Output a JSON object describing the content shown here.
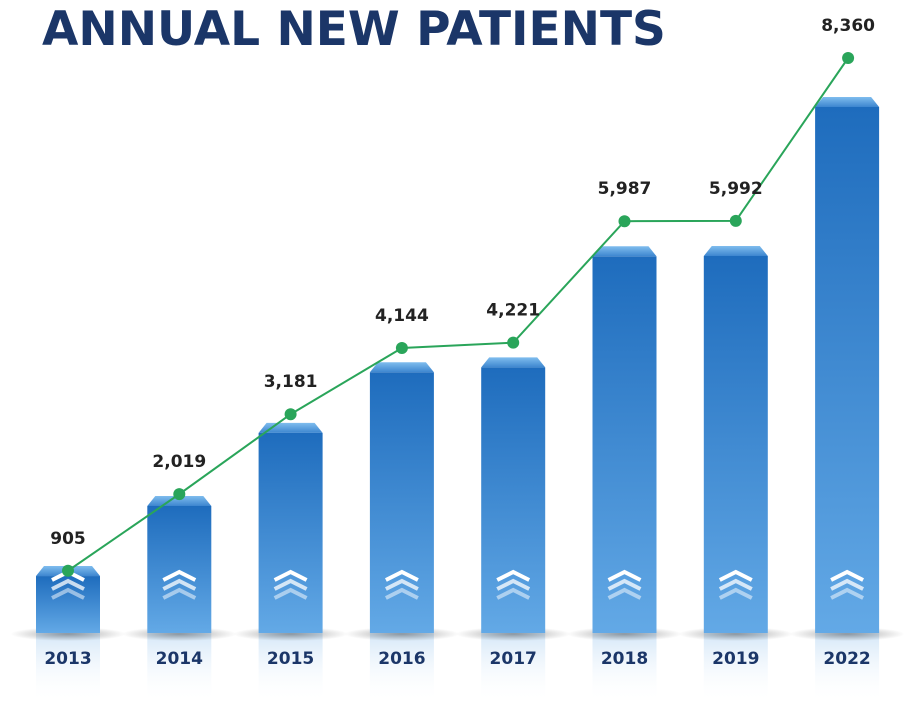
{
  "header": {
    "title": "ANNUAL NEW PATIENTS"
  },
  "colors": {
    "title": "#1b3668",
    "bar_top": "#1e6cbd",
    "bar_bottom": "#63a9e6",
    "line": "#2aa55a",
    "value_text": "#222222",
    "year_text": "#1b3668"
  },
  "chart_data": {
    "type": "bar",
    "title": "ANNUAL NEW PATIENTS",
    "xlabel": "",
    "ylabel": "",
    "categories": [
      "2013",
      "2014",
      "2015",
      "2016",
      "2017",
      "2018",
      "2019",
      "2022"
    ],
    "series": [
      {
        "values": [
          905,
          2019,
          3181,
          4144,
          4221,
          5987,
          5992,
          8360
        ]
      }
    ],
    "value_labels": [
      "905",
      "2,019",
      "3,181",
      "4,144",
      "4,221",
      "5,987",
      "5,992",
      "8,360"
    ],
    "overlay": "line-with-markers",
    "grid": false,
    "legend": "none",
    "ylim": [
      0,
      9000
    ]
  }
}
